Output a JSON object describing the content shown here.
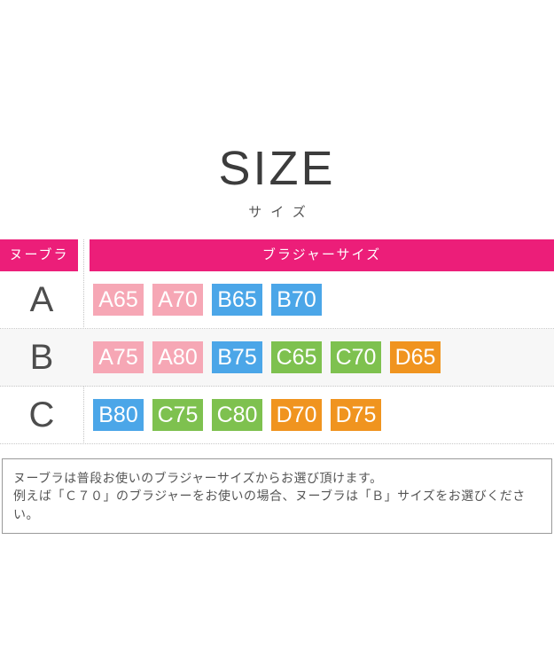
{
  "page": {
    "title": "SIZE",
    "subtitle": "サイズ"
  },
  "table": {
    "header": {
      "left": "ヌーブラ",
      "right": "ブラジャーサイズ"
    },
    "rows": [
      {
        "nubra_size": "A",
        "bra_sizes": [
          "A65",
          "A70",
          "B65",
          "B70"
        ]
      },
      {
        "nubra_size": "B",
        "bra_sizes": [
          "A75",
          "A80",
          "B75",
          "C65",
          "C70",
          "D65"
        ]
      },
      {
        "nubra_size": "C",
        "bra_sizes": [
          "B80",
          "C75",
          "C80",
          "D70",
          "D75"
        ]
      }
    ]
  },
  "colors": {
    "header_bg": "#EC1E79",
    "cup_A": "#F6A7B5",
    "cup_B": "#4BA6E8",
    "cup_C": "#7EC14F",
    "cup_D": "#F0941F",
    "row_stripe": "#F7F7F7"
  },
  "note": {
    "lines": [
      "ヌーブラは普段お使いのブラジャーサイズからお選び頂けます。",
      "例えば「Ｃ７０」のブラジャーをお使いの場合、ヌーブラは「Ｂ」サイズをお選びください。"
    ]
  },
  "chart_data": {
    "type": "table",
    "title": "SIZE",
    "subtitle": "サイズ",
    "columns": [
      "ヌーブラ",
      "ブラジャーサイズ"
    ],
    "rows": [
      {
        "nubra": "A",
        "bra_sizes": [
          "A65",
          "A70",
          "B65",
          "B70"
        ]
      },
      {
        "nubra": "B",
        "bra_sizes": [
          "A75",
          "A80",
          "B75",
          "C65",
          "C70",
          "D65"
        ]
      },
      {
        "nubra": "C",
        "bra_sizes": [
          "B80",
          "C75",
          "C80",
          "D70",
          "D75"
        ]
      }
    ],
    "color_coding_by_cup": {
      "A": "#F6A7B5",
      "B": "#4BA6E8",
      "C": "#7EC14F",
      "D": "#F0941F"
    }
  }
}
